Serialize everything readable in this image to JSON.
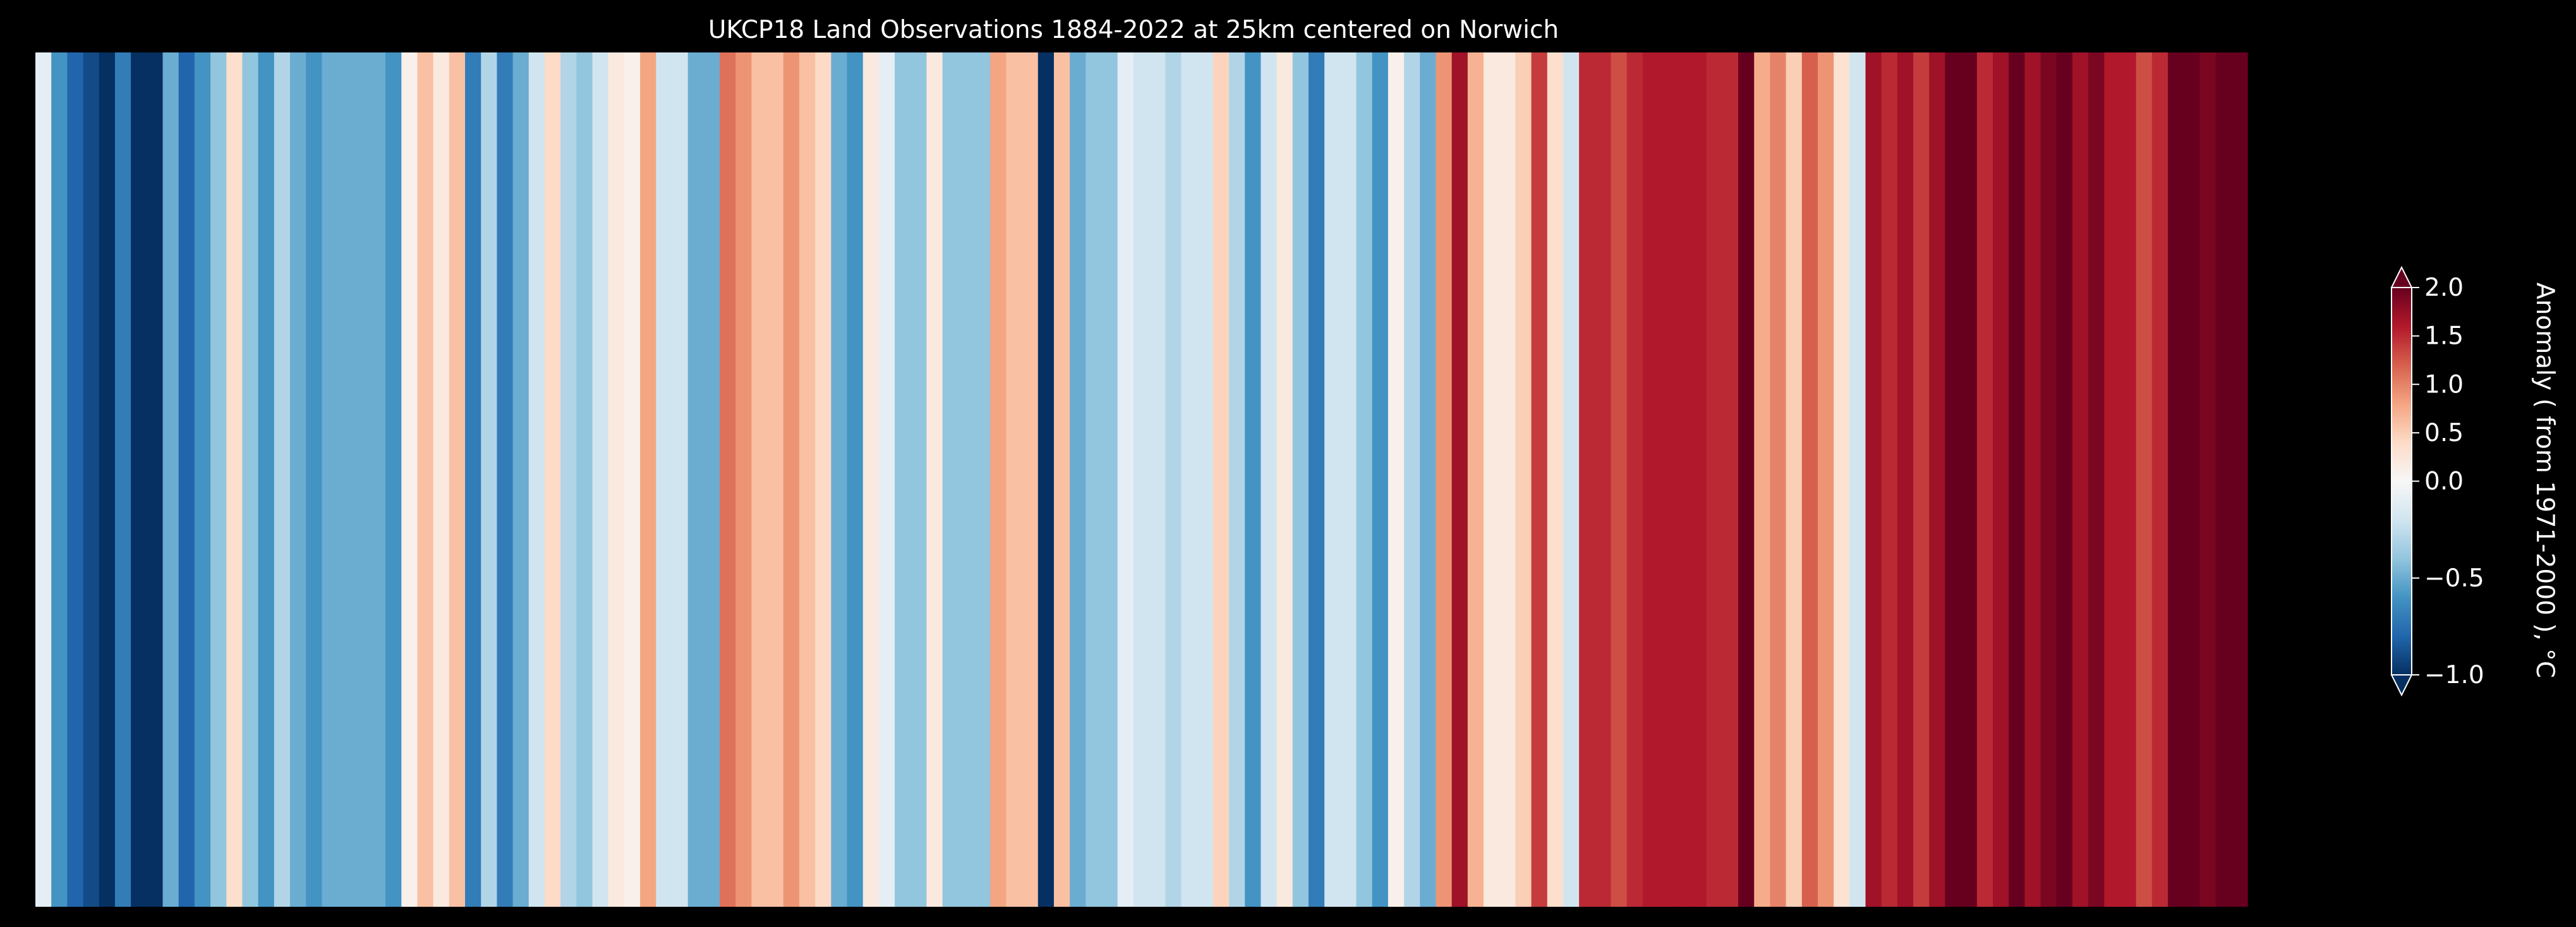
{
  "chart_data": {
    "type": "heatmap",
    "title": "UKCP18 Land Observations 1884-2022 at 25km centered on Norwich",
    "x_range": [
      1884,
      2022
    ],
    "colorbar": {
      "label": "Anomaly ( from 1971-2000 ), °C",
      "range": [
        -1.0,
        2.0
      ],
      "ticks": [
        -1.0,
        -0.5,
        0.0,
        0.5,
        1.0,
        1.5,
        2.0
      ],
      "tick_labels": [
        "−1.0",
        "−0.5",
        "0.0",
        "0.5",
        "1.0",
        "1.5",
        "2.0"
      ],
      "extend": "both",
      "colormap": "RdBu_r"
    },
    "values": [
      -0.1,
      -0.6,
      -0.8,
      -0.9,
      -1.0,
      -0.7,
      -1.0,
      -1.0,
      -0.5,
      -0.8,
      -0.6,
      -0.4,
      0.35,
      -0.4,
      -0.6,
      -0.3,
      -0.5,
      -0.6,
      -0.5,
      -0.5,
      -0.5,
      -0.5,
      -0.6,
      0.1,
      0.6,
      0.2,
      0.6,
      -0.7,
      -0.3,
      -0.7,
      -0.5,
      -0.2,
      0.4,
      -0.3,
      -0.4,
      -0.2,
      0.2,
      0.1,
      0.8,
      -0.2,
      -0.2,
      -0.5,
      -0.5,
      1.1,
      0.9,
      0.6,
      0.6,
      0.9,
      0.6,
      0.4,
      -0.5,
      -0.6,
      0.2,
      -0.1,
      -0.4,
      -0.4,
      0.2,
      -0.4,
      -0.4,
      -0.4,
      0.8,
      0.6,
      0.6,
      -1.0,
      0.6,
      -0.5,
      -0.4,
      -0.4,
      -0.1,
      -0.2,
      -0.2,
      -0.3,
      -0.2,
      -0.2,
      0.45,
      -0.3,
      -0.6,
      -0.2,
      0.2,
      -0.4,
      -0.7,
      -0.2,
      -0.2,
      -0.4,
      -0.6,
      0.1,
      -0.3,
      -0.5,
      0.9,
      1.7,
      0.7,
      0.2,
      0.2,
      0.5,
      1.4,
      0.35,
      -0.2,
      1.5,
      1.5,
      1.3,
      1.5,
      1.6,
      1.6,
      1.6,
      1.6,
      1.5,
      1.5,
      2.0,
      0.75,
      1.0,
      0.5,
      1.2,
      0.9,
      0.3,
      -0.2,
      1.7,
      1.5,
      1.7,
      1.4,
      1.7,
      2.1,
      2.0,
      1.5,
      1.7,
      2.2,
      1.7,
      1.9,
      2.0,
      1.7,
      1.9,
      1.6,
      1.6,
      1.3,
      1.5,
      2.0,
      2.2,
      1.9,
      2.0,
      2.2
    ]
  },
  "colors": {
    "background": "#000000",
    "foreground": "#ffffff"
  }
}
